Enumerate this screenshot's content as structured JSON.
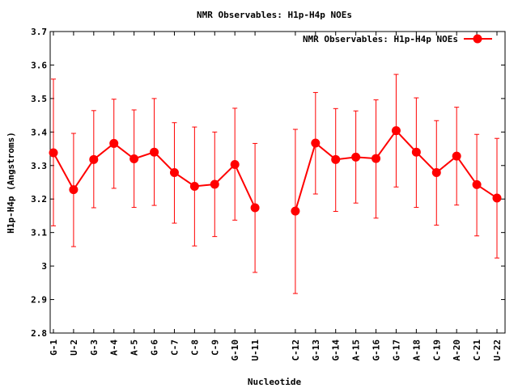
{
  "chart_data": {
    "type": "line",
    "title": "NMR Observables: H1p-H4p NOEs",
    "xlabel": "Nucleotide",
    "ylabel": "H1p-H4p (Angstroms)",
    "ylim": [
      2.8,
      3.7
    ],
    "yticks": [
      "2.8",
      "2.9",
      "3",
      "3.1",
      "3.2",
      "3.3",
      "3.4",
      "3.5",
      "3.6",
      "3.7"
    ],
    "legend_position": "top-right",
    "grid": false,
    "line_color": "#ff0000",
    "series": [
      {
        "name": "NMR Observables: H1p-H4p NOEs",
        "segments": [
          [
            {
              "x": "G-1",
              "y": 3.338,
              "ylow": 3.12,
              "yhigh": 3.558
            },
            {
              "x": "U-2",
              "y": 3.228,
              "ylow": 3.058,
              "yhigh": 3.396
            },
            {
              "x": "G-3",
              "y": 3.318,
              "ylow": 3.174,
              "yhigh": 3.464
            },
            {
              "x": "A-4",
              "y": 3.366,
              "ylow": 3.232,
              "yhigh": 3.498
            },
            {
              "x": "A-5",
              "y": 3.32,
              "ylow": 3.175,
              "yhigh": 3.466
            },
            {
              "x": "G-6",
              "y": 3.34,
              "ylow": 3.181,
              "yhigh": 3.5
            },
            {
              "x": "C-7",
              "y": 3.279,
              "ylow": 3.128,
              "yhigh": 3.428
            },
            {
              "x": "C-8",
              "y": 3.238,
              "ylow": 3.06,
              "yhigh": 3.415
            },
            {
              "x": "C-9",
              "y": 3.244,
              "ylow": 3.088,
              "yhigh": 3.4
            },
            {
              "x": "G-10",
              "y": 3.303,
              "ylow": 3.137,
              "yhigh": 3.471
            },
            {
              "x": "U-11",
              "y": 3.174,
              "ylow": 2.981,
              "yhigh": 3.366
            }
          ],
          [
            {
              "x": "C-12",
              "y": 3.164,
              "ylow": 2.918,
              "yhigh": 3.408
            },
            {
              "x": "G-13",
              "y": 3.367,
              "ylow": 3.215,
              "yhigh": 3.518
            },
            {
              "x": "G-14",
              "y": 3.318,
              "ylow": 3.163,
              "yhigh": 3.47
            },
            {
              "x": "A-15",
              "y": 3.325,
              "ylow": 3.188,
              "yhigh": 3.463
            },
            {
              "x": "G-16",
              "y": 3.321,
              "ylow": 3.143,
              "yhigh": 3.496
            },
            {
              "x": "G-17",
              "y": 3.404,
              "ylow": 3.236,
              "yhigh": 3.572
            },
            {
              "x": "A-18",
              "y": 3.34,
              "ylow": 3.175,
              "yhigh": 3.502
            },
            {
              "x": "C-19",
              "y": 3.279,
              "ylow": 3.122,
              "yhigh": 3.434
            },
            {
              "x": "A-20",
              "y": 3.328,
              "ylow": 3.182,
              "yhigh": 3.474
            },
            {
              "x": "C-21",
              "y": 3.243,
              "ylow": 3.09,
              "yhigh": 3.393
            },
            {
              "x": "U-22",
              "y": 3.203,
              "ylow": 3.024,
              "yhigh": 3.381
            }
          ]
        ]
      }
    ]
  }
}
